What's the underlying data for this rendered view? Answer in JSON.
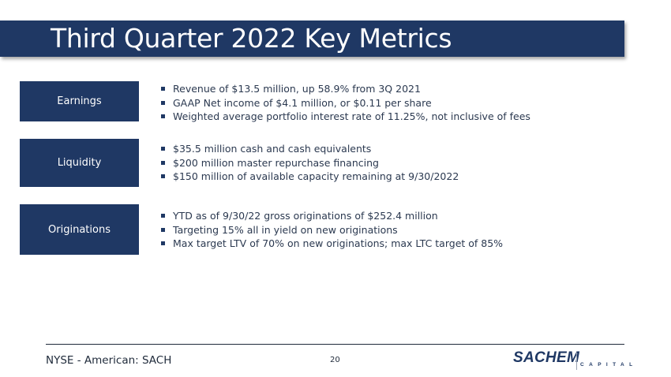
{
  "slide": {
    "title": "Third Quarter 2022 Key Metrics",
    "sections": [
      {
        "label": "Earnings",
        "bullets": [
          "Revenue of $13.5 million, up 58.9% from 3Q 2021",
          "GAAP Net income of $4.1 million, or $0.11 per share",
          "Weighted average portfolio interest rate of 11.25%, not inclusive of fees"
        ]
      },
      {
        "label": "Liquidity",
        "bullets": [
          "$35.5 million cash and cash equivalents",
          "$200 million master repurchase financing",
          "$150 million of available capacity remaining at 9/30/2022"
        ]
      },
      {
        "label": "Originations",
        "bullets": [
          "YTD as of 9/30/22 gross originations of $252.4 million",
          "Targeting 15% all in yield on new originations",
          "Max target LTV of 70% on new originations; max LTC target of 85%"
        ]
      }
    ]
  },
  "footer": {
    "ticker": "NYSE - American: SACH",
    "page_number": "20",
    "logo_main": "SACHEM",
    "logo_sub": "CAPITAL"
  },
  "colors": {
    "brand_navy": "#1f3864",
    "text": "#2b3950"
  }
}
